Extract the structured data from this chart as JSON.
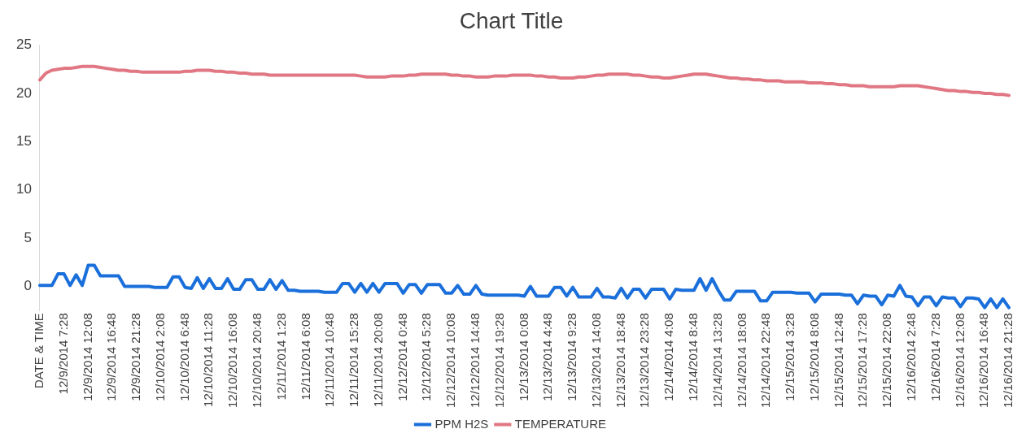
{
  "chart_data": {
    "type": "line",
    "title": "Chart Title",
    "categories": [
      "DATE & TIME",
      null,
      null,
      null,
      "12/9/2014 7:28",
      null,
      null,
      null,
      "12/9/2014 12:08",
      null,
      null,
      null,
      "12/9/2014 16:48",
      null,
      null,
      null,
      "12/9/2014 21:28",
      null,
      null,
      null,
      "12/10/2014 2:08",
      null,
      null,
      null,
      "12/10/2014 6:48",
      null,
      null,
      null,
      "12/10/2014 11:28",
      null,
      null,
      null,
      "12/10/2014 16:08",
      null,
      null,
      null,
      "12/10/2014 20:48",
      null,
      null,
      null,
      "12/11/2014 1:28",
      null,
      null,
      null,
      "12/11/2014 6:08",
      null,
      null,
      null,
      "12/11/2014 10:48",
      null,
      null,
      null,
      "12/11/2014 15:28",
      null,
      null,
      null,
      "12/11/2014 20:08",
      null,
      null,
      null,
      "12/12/2014 0:48",
      null,
      null,
      null,
      "12/12/2014 5:28",
      null,
      null,
      null,
      "12/12/2014 10:08",
      null,
      null,
      null,
      "12/12/2014 14:48",
      null,
      null,
      null,
      "12/12/2014 19:28",
      null,
      null,
      null,
      "12/13/2014 0:08",
      null,
      null,
      null,
      "12/13/2014 4:48",
      null,
      null,
      null,
      "12/13/2014 9:28",
      null,
      null,
      null,
      "12/13/2014 14:08",
      null,
      null,
      null,
      "12/13/2014 18:48",
      null,
      null,
      null,
      "12/13/2014 23:28",
      null,
      null,
      null,
      "12/14/2014 4:08",
      null,
      null,
      null,
      "12/14/2014 8:48",
      null,
      null,
      null,
      "12/14/2014 13:28",
      null,
      null,
      null,
      "12/14/2014 18:08",
      null,
      null,
      null,
      "12/14/2014 22:48",
      null,
      null,
      null,
      "12/15/2014 3:28",
      null,
      null,
      null,
      "12/15/2014 8:08",
      null,
      null,
      null,
      "12/15/2014 12:48",
      null,
      null,
      null,
      "12/15/2014 17:28",
      null,
      null,
      null,
      "12/15/2014 22:08",
      null,
      null,
      null,
      "12/16/2014 2:48",
      null,
      null,
      null,
      "12/16/2014 7:28",
      null,
      null,
      null,
      "12/16/2014 12:08",
      null,
      null,
      null,
      "12/16/2014 16:48",
      null,
      null,
      null,
      "12/16/2014 21:28"
    ],
    "series": [
      {
        "name": "PPM H2S",
        "color": "#1a6fdb",
        "values": [
          0.1,
          0.1,
          0.1,
          1.3,
          1.3,
          0.1,
          1.2,
          0.1,
          2.2,
          2.2,
          1.1,
          1.1,
          1.1,
          1.1,
          0.0,
          0.0,
          0.0,
          0.0,
          0.0,
          -0.1,
          -0.1,
          -0.1,
          1.0,
          1.0,
          -0.1,
          -0.2,
          0.9,
          -0.2,
          0.8,
          -0.2,
          -0.2,
          0.8,
          -0.3,
          -0.3,
          0.7,
          0.7,
          -0.3,
          -0.3,
          0.7,
          -0.3,
          0.6,
          -0.4,
          -0.4,
          -0.5,
          -0.5,
          -0.5,
          -0.5,
          -0.6,
          -0.6,
          -0.6,
          0.3,
          0.3,
          -0.6,
          0.3,
          -0.6,
          0.3,
          -0.6,
          0.3,
          0.3,
          0.3,
          -0.7,
          0.2,
          0.2,
          -0.7,
          0.2,
          0.2,
          0.2,
          -0.7,
          -0.7,
          0.1,
          -0.8,
          -0.8,
          0.1,
          -0.8,
          -0.9,
          -0.9,
          -0.9,
          -0.9,
          -0.9,
          -0.9,
          -1.0,
          0.0,
          -1.0,
          -1.0,
          -1.0,
          -0.1,
          -0.1,
          -1.0,
          -0.1,
          -1.1,
          -1.1,
          -1.1,
          -0.2,
          -1.1,
          -1.1,
          -1.2,
          -0.2,
          -1.2,
          -0.3,
          -0.3,
          -1.2,
          -0.3,
          -0.3,
          -0.3,
          -1.3,
          -0.3,
          -0.4,
          -0.4,
          -0.4,
          0.8,
          -0.4,
          0.8,
          -0.4,
          -1.4,
          -1.4,
          -0.5,
          -0.5,
          -0.5,
          -0.5,
          -1.5,
          -1.5,
          -0.6,
          -0.6,
          -0.6,
          -0.6,
          -0.7,
          -0.7,
          -0.7,
          -1.6,
          -0.8,
          -0.8,
          -0.8,
          -0.8,
          -0.9,
          -0.9,
          -1.8,
          -0.9,
          -1.0,
          -1.0,
          -1.9,
          -0.9,
          -1.0,
          0.1,
          -1.0,
          -1.1,
          -2.0,
          -1.1,
          -1.1,
          -2.0,
          -1.1,
          -1.2,
          -1.2,
          -2.1,
          -1.2,
          -1.2,
          -1.3,
          -2.2,
          -1.3,
          -2.2,
          -1.3,
          -2.2
        ]
      },
      {
        "name": "TEMPERATURE",
        "color": "#e07783",
        "values": [
          21.4,
          22.1,
          22.4,
          22.5,
          22.6,
          22.6,
          22.7,
          22.8,
          22.8,
          22.8,
          22.7,
          22.6,
          22.5,
          22.4,
          22.4,
          22.3,
          22.3,
          22.2,
          22.2,
          22.2,
          22.2,
          22.2,
          22.2,
          22.2,
          22.3,
          22.3,
          22.4,
          22.4,
          22.4,
          22.3,
          22.3,
          22.2,
          22.2,
          22.1,
          22.1,
          22.0,
          22.0,
          22.0,
          21.9,
          21.9,
          21.9,
          21.9,
          21.9,
          21.9,
          21.9,
          21.9,
          21.9,
          21.9,
          21.9,
          21.9,
          21.9,
          21.9,
          21.9,
          21.8,
          21.7,
          21.7,
          21.7,
          21.7,
          21.8,
          21.8,
          21.8,
          21.9,
          21.9,
          22.0,
          22.0,
          22.0,
          22.0,
          22.0,
          21.9,
          21.9,
          21.8,
          21.8,
          21.7,
          21.7,
          21.7,
          21.8,
          21.8,
          21.8,
          21.9,
          21.9,
          21.9,
          21.9,
          21.8,
          21.8,
          21.7,
          21.7,
          21.6,
          21.6,
          21.6,
          21.7,
          21.7,
          21.8,
          21.9,
          21.9,
          22.0,
          22.0,
          22.0,
          22.0,
          21.9,
          21.9,
          21.8,
          21.7,
          21.7,
          21.6,
          21.6,
          21.7,
          21.8,
          21.9,
          22.0,
          22.0,
          22.0,
          21.9,
          21.8,
          21.7,
          21.6,
          21.6,
          21.5,
          21.5,
          21.4,
          21.4,
          21.3,
          21.3,
          21.3,
          21.2,
          21.2,
          21.2,
          21.2,
          21.1,
          21.1,
          21.1,
          21.0,
          21.0,
          20.9,
          20.9,
          20.8,
          20.8,
          20.8,
          20.7,
          20.7,
          20.7,
          20.7,
          20.7,
          20.8,
          20.8,
          20.8,
          20.8,
          20.7,
          20.6,
          20.5,
          20.4,
          20.3,
          20.3,
          20.2,
          20.2,
          20.1,
          20.1,
          20.0,
          20.0,
          19.9,
          19.9,
          19.8
        ]
      }
    ],
    "ylim": [
      -2.5,
      25
    ],
    "yticks": [
      0,
      5,
      10,
      15,
      20,
      25
    ],
    "grid": false,
    "legend": "bottom",
    "marker": "none"
  }
}
